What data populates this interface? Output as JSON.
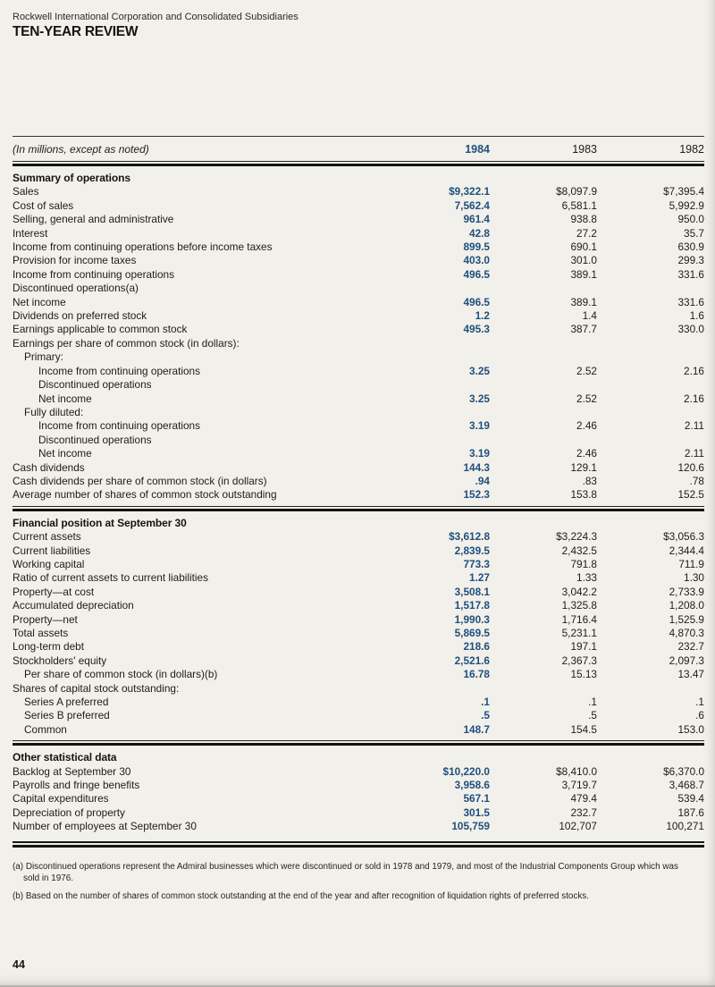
{
  "page": {
    "corp_line": "Rockwell International Corporation and Consolidated Subsidiaries",
    "title": "TEN-YEAR REVIEW",
    "page_number": "44",
    "accent_color": "#1f4f7d"
  },
  "table": {
    "caption": "(In millions, except as noted)",
    "year_columns": [
      "1984",
      "1983",
      "1982"
    ],
    "sections": [
      {
        "title": "Summary of operations",
        "rows": [
          {
            "label": "Sales",
            "indent": 0,
            "values": [
              "$9,322.1",
              "$8,097.9",
              "$7,395.4"
            ]
          },
          {
            "label": "Cost of sales",
            "indent": 0,
            "values": [
              "7,562.4",
              "6,581.1",
              "5,992.9"
            ]
          },
          {
            "label": "Selling, general and administrative",
            "indent": 0,
            "values": [
              "961.4",
              "938.8",
              "950.0"
            ]
          },
          {
            "label": "Interest",
            "indent": 0,
            "values": [
              "42.8",
              "27.2",
              "35.7"
            ]
          },
          {
            "label": "Income from continuing operations before income taxes",
            "indent": 0,
            "values": [
              "899.5",
              "690.1",
              "630.9"
            ]
          },
          {
            "label": "Provision for income taxes",
            "indent": 0,
            "values": [
              "403.0",
              "301.0",
              "299.3"
            ]
          },
          {
            "label": "Income from continuing operations",
            "indent": 0,
            "values": [
              "496.5",
              "389.1",
              "331.6"
            ]
          },
          {
            "label": "Discontinued operations(a)",
            "indent": 0,
            "values": [
              "",
              "",
              ""
            ]
          },
          {
            "label": "Net income",
            "indent": 0,
            "values": [
              "496.5",
              "389.1",
              "331.6"
            ]
          },
          {
            "label": "Dividends on preferred stock",
            "indent": 0,
            "values": [
              "1.2",
              "1.4",
              "1.6"
            ]
          },
          {
            "label": "Earnings applicable to common stock",
            "indent": 0,
            "values": [
              "495.3",
              "387.7",
              "330.0"
            ]
          },
          {
            "label": "Earnings per share of common stock (in dollars):",
            "indent": 0,
            "values": [
              "",
              "",
              ""
            ]
          },
          {
            "label": "Primary:",
            "indent": 1,
            "values": [
              "",
              "",
              ""
            ]
          },
          {
            "label": "Income from continuing operations",
            "indent": 2,
            "values": [
              "3.25",
              "2.52",
              "2.16"
            ]
          },
          {
            "label": "Discontinued operations",
            "indent": 2,
            "values": [
              "",
              "",
              ""
            ]
          },
          {
            "label": "Net income",
            "indent": 2,
            "values": [
              "3.25",
              "2.52",
              "2.16"
            ]
          },
          {
            "label": "Fully diluted:",
            "indent": 1,
            "values": [
              "",
              "",
              ""
            ]
          },
          {
            "label": "Income from continuing operations",
            "indent": 2,
            "values": [
              "3.19",
              "2.46",
              "2.11"
            ]
          },
          {
            "label": "Discontinued operations",
            "indent": 2,
            "values": [
              "",
              "",
              ""
            ]
          },
          {
            "label": "Net income",
            "indent": 2,
            "values": [
              "3.19",
              "2.46",
              "2.11"
            ]
          },
          {
            "label": "Cash dividends",
            "indent": 0,
            "values": [
              "144.3",
              "129.1",
              "120.6"
            ]
          },
          {
            "label": "Cash dividends per share of common stock (in dollars)",
            "indent": 0,
            "values": [
              ".94",
              ".83",
              ".78"
            ]
          },
          {
            "label": "Average number of shares of common stock outstanding",
            "indent": 0,
            "values": [
              "152.3",
              "153.8",
              "152.5"
            ]
          }
        ]
      },
      {
        "title": "Financial position at September 30",
        "rows": [
          {
            "label": "Current assets",
            "indent": 0,
            "values": [
              "$3,612.8",
              "$3,224.3",
              "$3,056.3"
            ]
          },
          {
            "label": "Current liabilities",
            "indent": 0,
            "values": [
              "2,839.5",
              "2,432.5",
              "2,344.4"
            ]
          },
          {
            "label": "Working capital",
            "indent": 0,
            "values": [
              "773.3",
              "791.8",
              "711.9"
            ]
          },
          {
            "label": "Ratio of current assets to current liabilities",
            "indent": 0,
            "values": [
              "1.27",
              "1.33",
              "1.30"
            ]
          },
          {
            "label": "Property—at cost",
            "indent": 0,
            "values": [
              "3,508.1",
              "3,042.2",
              "2,733.9"
            ]
          },
          {
            "label": "Accumulated depreciation",
            "indent": 0,
            "values": [
              "1,517.8",
              "1,325.8",
              "1,208.0"
            ]
          },
          {
            "label": "Property—net",
            "indent": 0,
            "values": [
              "1,990.3",
              "1,716.4",
              "1,525.9"
            ]
          },
          {
            "label": "Total assets",
            "indent": 0,
            "values": [
              "5,869.5",
              "5,231.1",
              "4,870.3"
            ]
          },
          {
            "label": "Long-term debt",
            "indent": 0,
            "values": [
              "218.6",
              "197.1",
              "232.7"
            ]
          },
          {
            "label": "Stockholders' equity",
            "indent": 0,
            "values": [
              "2,521.6",
              "2,367.3",
              "2,097.3"
            ]
          },
          {
            "label": "Per share of common stock (in dollars)(b)",
            "indent": 1,
            "values": [
              "16.78",
              "15.13",
              "13.47"
            ]
          },
          {
            "label": "Shares of capital stock outstanding:",
            "indent": 0,
            "values": [
              "",
              "",
              ""
            ]
          },
          {
            "label": "Series A preferred",
            "indent": 1,
            "values": [
              ".1",
              ".1",
              ".1"
            ]
          },
          {
            "label": "Series B preferred",
            "indent": 1,
            "values": [
              ".5",
              ".5",
              ".6"
            ]
          },
          {
            "label": "Common",
            "indent": 1,
            "values": [
              "148.7",
              "154.5",
              "153.0"
            ]
          }
        ]
      },
      {
        "title": "Other statistical data",
        "rows": [
          {
            "label": "Backlog at September 30",
            "indent": 0,
            "values": [
              "$10,220.0",
              "$8,410.0",
              "$6,370.0"
            ]
          },
          {
            "label": "Payrolls and fringe benefits",
            "indent": 0,
            "values": [
              "3,958.6",
              "3,719.7",
              "3,468.7"
            ]
          },
          {
            "label": "Capital expenditures",
            "indent": 0,
            "values": [
              "567.1",
              "479.4",
              "539.4"
            ]
          },
          {
            "label": "Depreciation of property",
            "indent": 0,
            "values": [
              "301.5",
              "232.7",
              "187.6"
            ]
          },
          {
            "label": "Number of employees at September 30",
            "indent": 0,
            "values": [
              "105,759",
              "102,707",
              "100,271"
            ]
          }
        ]
      }
    ],
    "footnotes": [
      "(a) Discontinued operations represent the Admiral businesses which were discontinued or sold in 1978 and 1979, and most of the Industrial Components Group which was sold in 1976.",
      "(b) Based on the number of shares of common stock outstanding at the end of the year and after recognition of liquidation rights of preferred stocks."
    ]
  }
}
